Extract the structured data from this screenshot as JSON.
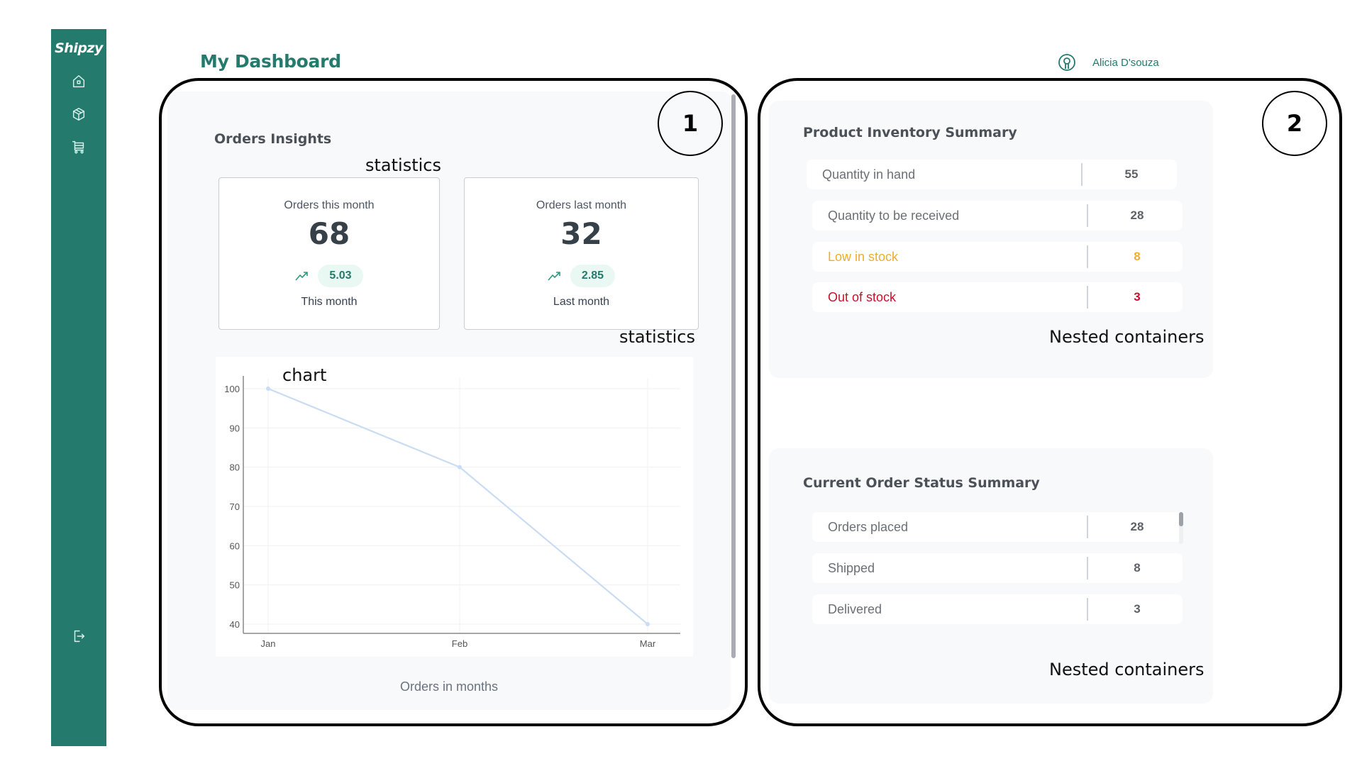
{
  "app": {
    "name": "Shipzy",
    "page_title": "My Dashboard",
    "user_name": "Alicia D'souza",
    "brand_color": "#247a6c"
  },
  "sidebar": {
    "items": [
      {
        "icon": "home-icon",
        "label": "Home"
      },
      {
        "icon": "package-icon",
        "label": "Products"
      },
      {
        "icon": "cart-icon",
        "label": "Orders"
      }
    ],
    "footer_icon": "logout-icon"
  },
  "orders_insights": {
    "title": "Orders Insights",
    "cards": [
      {
        "label": "Orders this month",
        "value": "68",
        "trend": "5.03",
        "trend_icon": "trending-up-icon",
        "sub": "This month"
      },
      {
        "label": "Orders last month",
        "value": "32",
        "trend": "2.85",
        "trend_icon": "trending-up-icon",
        "sub": "Last month"
      }
    ],
    "chart_caption": "Orders in months"
  },
  "chart_data": {
    "type": "line",
    "title": "",
    "categories": [
      "Jan",
      "Feb",
      "Mar"
    ],
    "series": [
      {
        "name": "Orders",
        "values": [
          100,
          80,
          40
        ],
        "color": "#c9dcf2"
      }
    ],
    "xlabel": "Orders in months",
    "ylabel": "",
    "yticks": [
      40,
      50,
      60,
      70,
      80,
      90,
      100
    ],
    "ylim": [
      35,
      105
    ],
    "grid": true,
    "legend": "none"
  },
  "inventory": {
    "title": "Product Inventory Summary",
    "rows": [
      {
        "label": "Quantity in hand",
        "value": "55",
        "color": "#5d6267",
        "label_color": "#6b7075"
      },
      {
        "label": "Quantity to be received",
        "value": "28",
        "color": "#5d6267",
        "label_color": "#6b7075"
      },
      {
        "label": "Low in stock",
        "value": "8",
        "color": "#f0ad2c",
        "label_color": "#f0ad2c"
      },
      {
        "label": "Out of stock",
        "value": "3",
        "color": "#c8102e",
        "label_color": "#c8102e"
      }
    ]
  },
  "order_status": {
    "title": "Current Order Status Summary",
    "rows": [
      {
        "label": "Orders placed",
        "value": "28"
      },
      {
        "label": "Shipped",
        "value": "8"
      },
      {
        "label": "Delivered",
        "value": "3"
      }
    ]
  },
  "annotations": {
    "region1_number": "1",
    "region2_number": "2",
    "statistics_label_1": "statistics",
    "statistics_label_2": "statistics",
    "chart_label": "chart",
    "nested_label_1": "Nested containers",
    "nested_label_2": "Nested containers"
  }
}
